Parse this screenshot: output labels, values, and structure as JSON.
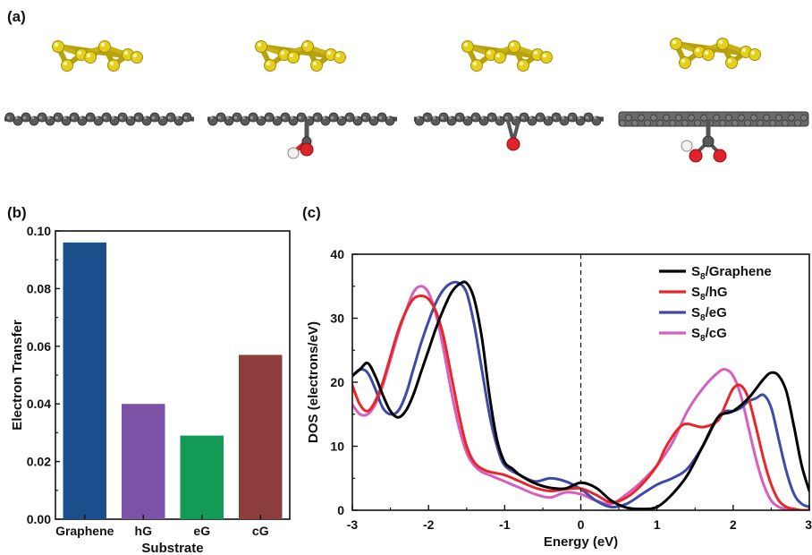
{
  "panels": {
    "a": "(a)",
    "b": "(b)",
    "c": "(c)"
  },
  "molecules": [
    "Graphene",
    "hG",
    "eG",
    "cG"
  ],
  "colors": {
    "sulfur": "#e6cf1a",
    "carbon": "#5a5a5a",
    "oxygen": "#e0232a",
    "hydrogen": "#f2f2f2"
  },
  "chart_data": [
    {
      "type": "bar",
      "panel": "b",
      "categories": [
        "Graphene",
        "hG",
        "eG",
        "cG"
      ],
      "values": [
        0.096,
        0.04,
        0.029,
        0.057
      ],
      "colors": [
        "#1a4f8e",
        "#7b52a6",
        "#139a55",
        "#8e3d3d"
      ],
      "xlabel": "Substrate",
      "ylabel": "Electron Transfer",
      "ylim": [
        0,
        0.1
      ],
      "yticks": [
        "0.00",
        "0.02",
        "0.04",
        "0.06",
        "0.08",
        "0.10"
      ],
      "ytick_values": [
        0,
        0.02,
        0.04,
        0.06,
        0.08,
        0.1
      ],
      "grid": false
    },
    {
      "type": "line",
      "panel": "c",
      "xlabel": "Energy (eV)",
      "ylabel": "DOS (electrons/eV)",
      "xlim": [
        -3,
        3
      ],
      "ylim": [
        0,
        40
      ],
      "xticks": [
        "-3",
        "-2",
        "-1",
        "0",
        "1",
        "2",
        "3"
      ],
      "xtick_values": [
        -3,
        -2,
        -1,
        0,
        1,
        2,
        3
      ],
      "yticks": [
        "0",
        "10",
        "20",
        "30",
        "40"
      ],
      "ytick_values": [
        0,
        10,
        20,
        30,
        40
      ],
      "vline_x": 0,
      "legend_position": "top-right",
      "grid": false,
      "series": [
        {
          "name": "S8/Graphene",
          "label_main": "S",
          "label_sub": "8",
          "label_rest": "/Graphene",
          "color": "#000000",
          "x": [
            -3.0,
            -2.9,
            -2.8,
            -2.7,
            -2.6,
            -2.5,
            -2.4,
            -2.3,
            -2.2,
            -2.1,
            -2.0,
            -1.9,
            -1.8,
            -1.7,
            -1.6,
            -1.5,
            -1.4,
            -1.3,
            -1.2,
            -1.1,
            -1.0,
            -0.9,
            -0.8,
            -0.6,
            -0.4,
            -0.2,
            0.0,
            0.2,
            0.4,
            0.6,
            0.8,
            1.0,
            1.2,
            1.4,
            1.6,
            1.8,
            2.0,
            2.2,
            2.4,
            2.5,
            2.6,
            2.7,
            2.8,
            2.9,
            3.0
          ],
          "y": [
            21,
            22,
            23,
            21,
            18,
            15.5,
            14.5,
            15.5,
            18,
            21.5,
            25,
            28.5,
            31.5,
            34,
            35.3,
            35.5,
            33,
            27,
            18,
            11,
            7.5,
            6.5,
            5.5,
            4.2,
            3.5,
            3.4,
            4.3,
            3.5,
            1.5,
            0.4,
            0.2,
            0.5,
            2.5,
            5.5,
            10,
            14.5,
            15.5,
            17.5,
            20.5,
            21.5,
            21,
            18.5,
            13,
            7,
            3
          ]
        },
        {
          "name": "S8/hG",
          "label_main": "S",
          "label_sub": "8",
          "label_rest": "/hG",
          "color": "#e8262a",
          "x": [
            -3.0,
            -2.9,
            -2.8,
            -2.7,
            -2.6,
            -2.5,
            -2.4,
            -2.3,
            -2.2,
            -2.1,
            -2.0,
            -1.9,
            -1.8,
            -1.7,
            -1.6,
            -1.5,
            -1.4,
            -1.3,
            -1.2,
            -1.0,
            -0.8,
            -0.6,
            -0.4,
            -0.2,
            0.0,
            0.2,
            0.4,
            0.6,
            0.8,
            1.0,
            1.1,
            1.2,
            1.3,
            1.4,
            1.6,
            1.8,
            1.9,
            2.0,
            2.1,
            2.2,
            2.3,
            2.4,
            2.5,
            2.6,
            2.7,
            2.8,
            2.9,
            3.0
          ],
          "y": [
            19.5,
            16.5,
            15.5,
            17,
            20,
            24,
            28,
            31,
            33,
            33.5,
            33,
            31,
            27,
            21,
            15,
            10,
            7.5,
            6.5,
            6,
            5.5,
            4.5,
            3.5,
            3,
            3.3,
            3.4,
            2.4,
            1.2,
            2,
            4,
            7,
            9.5,
            11.5,
            13,
            13.5,
            13,
            14,
            16.5,
            19,
            19.5,
            17.5,
            13,
            8,
            4,
            1.5,
            0.5,
            0.2,
            0,
            0
          ]
        },
        {
          "name": "S8/eG",
          "label_main": "S",
          "label_sub": "8",
          "label_rest": "/eG",
          "color": "#3f4aa8",
          "x": [
            -3.0,
            -2.9,
            -2.8,
            -2.7,
            -2.6,
            -2.5,
            -2.4,
            -2.3,
            -2.2,
            -2.1,
            -2.0,
            -1.9,
            -1.8,
            -1.7,
            -1.6,
            -1.5,
            -1.4,
            -1.3,
            -1.2,
            -1.1,
            -1.0,
            -0.8,
            -0.6,
            -0.4,
            -0.2,
            0.0,
            0.2,
            0.4,
            0.6,
            0.8,
            1.0,
            1.2,
            1.4,
            1.6,
            1.8,
            1.9,
            2.0,
            2.1,
            2.2,
            2.3,
            2.4,
            2.5,
            2.6,
            2.7,
            2.8,
            2.9,
            3.0
          ],
          "y": [
            21,
            22,
            21.5,
            19,
            16,
            15,
            15.5,
            18,
            22,
            26,
            29.5,
            32.5,
            34.5,
            35.5,
            35.5,
            34,
            29,
            22,
            15,
            10,
            7,
            5.5,
            4.5,
            5,
            4.5,
            3.3,
            1.5,
            0.5,
            1,
            2.5,
            4,
            5,
            6.5,
            10,
            14.5,
            15.5,
            15.5,
            16,
            17,
            17.5,
            18,
            16,
            11,
            6,
            2.5,
            1,
            0.5
          ]
        },
        {
          "name": "S8/cG",
          "label_main": "S",
          "label_sub": "8",
          "label_rest": "/cG",
          "color": "#d65fbe",
          "x": [
            -3.0,
            -2.9,
            -2.8,
            -2.7,
            -2.6,
            -2.5,
            -2.4,
            -2.3,
            -2.2,
            -2.1,
            -2.0,
            -1.9,
            -1.8,
            -1.7,
            -1.6,
            -1.5,
            -1.4,
            -1.3,
            -1.2,
            -1.1,
            -1.0,
            -0.8,
            -0.6,
            -0.4,
            -0.2,
            0.0,
            0.2,
            0.4,
            0.6,
            0.8,
            1.0,
            1.2,
            1.4,
            1.6,
            1.8,
            1.9,
            2.0,
            2.1,
            2.2,
            2.3,
            2.4,
            2.5,
            2.6,
            2.7,
            2.8,
            2.9,
            3.0
          ],
          "y": [
            16.5,
            15,
            15,
            16.5,
            19.5,
            23.5,
            27.5,
            31,
            34,
            35,
            34,
            30.5,
            25,
            18.5,
            13,
            9,
            7,
            6,
            5.5,
            5,
            4.5,
            3.5,
            2.5,
            2,
            2.8,
            2.5,
            1.5,
            1,
            2.5,
            4.5,
            7,
            10.5,
            15.5,
            19,
            21.5,
            22,
            21,
            18,
            13,
            8,
            4,
            1.5,
            0.5,
            0.2,
            0,
            0,
            0
          ]
        }
      ]
    }
  ]
}
